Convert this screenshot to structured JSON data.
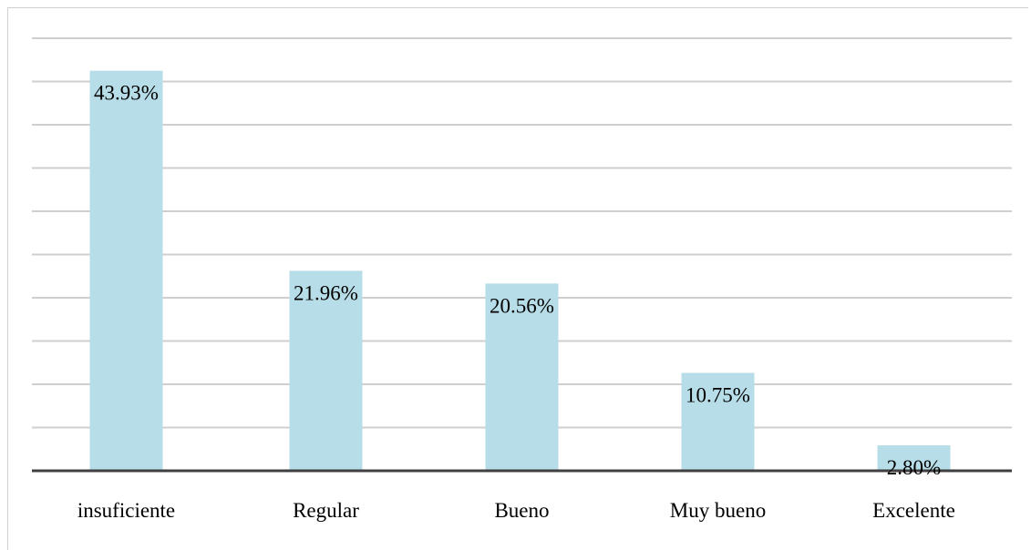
{
  "chart_data": {
    "type": "bar",
    "categories": [
      "insuficiente",
      "Regular",
      "Bueno",
      "Muy bueno",
      "Excelente"
    ],
    "values": [
      43.93,
      21.96,
      20.56,
      10.75,
      2.8
    ],
    "value_labels": [
      "43.93%",
      "21.96%",
      "20.56%",
      "10.75%",
      "2.80%"
    ],
    "title": "",
    "xlabel": "",
    "ylabel": "",
    "ylim": [
      0,
      47.5
    ],
    "grid": true,
    "legend": "none",
    "bar_color": "#b7dde8",
    "gridline_color": "#cfcfcf",
    "axis_color": "#404040"
  }
}
